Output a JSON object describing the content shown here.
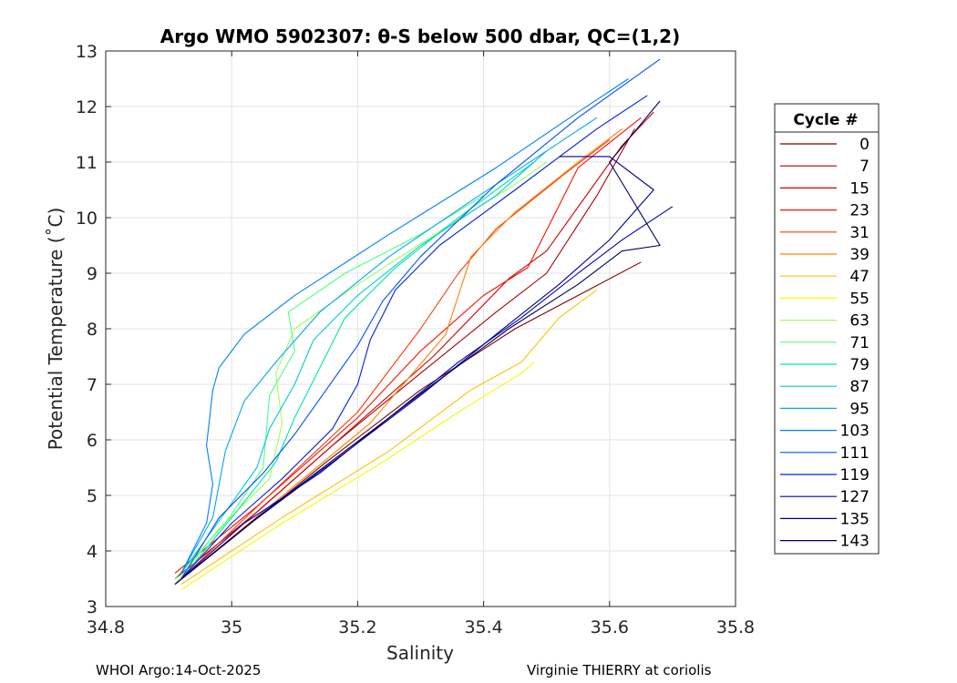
{
  "chart_data": {
    "type": "line",
    "title": "Argo WMO 5902307: θ-S below 500 dbar,  QC=(1,2)",
    "xlabel": "Salinity",
    "ylabel": "Potential Temperature (˚C)",
    "xlim": [
      34.8,
      35.8
    ],
    "ylim": [
      3,
      13
    ],
    "xticks": [
      34.8,
      35.0,
      35.2,
      35.4,
      35.6,
      35.8
    ],
    "xtick_labels": [
      "34.8",
      "35",
      "35.2",
      "35.4",
      "35.6",
      "35.8"
    ],
    "yticks": [
      3,
      4,
      5,
      6,
      7,
      8,
      9,
      10,
      11,
      12,
      13
    ],
    "ytick_labels": [
      "3",
      "4",
      "5",
      "6",
      "7",
      "8",
      "9",
      "10",
      "11",
      "12",
      "13"
    ],
    "grid": true,
    "legend_title": "Cycle #",
    "legend_position": "right",
    "series": [
      {
        "name": "0",
        "color": "#800000",
        "points": [
          [
            34.91,
            3.4
          ],
          [
            35.02,
            4.4
          ],
          [
            35.15,
            5.6
          ],
          [
            35.3,
            6.9
          ],
          [
            35.45,
            8.0
          ],
          [
            35.55,
            8.6
          ],
          [
            35.65,
            9.2
          ]
        ]
      },
      {
        "name": "7",
        "color": "#a80000",
        "points": [
          [
            34.91,
            3.5
          ],
          [
            35.03,
            4.6
          ],
          [
            35.16,
            5.9
          ],
          [
            35.3,
            7.2
          ],
          [
            35.42,
            8.3
          ],
          [
            35.5,
            9.0
          ],
          [
            35.58,
            10.4
          ],
          [
            35.64,
            11.6
          ]
        ]
      },
      {
        "name": "15",
        "color": "#d00000",
        "points": [
          [
            34.91,
            3.5
          ],
          [
            35.04,
            4.7
          ],
          [
            35.18,
            6.1
          ],
          [
            35.32,
            7.5
          ],
          [
            35.44,
            8.9
          ],
          [
            35.5,
            9.4
          ],
          [
            35.62,
            11.3
          ],
          [
            35.67,
            11.9
          ]
        ]
      },
      {
        "name": "23",
        "color": "#f81000",
        "points": [
          [
            34.91,
            3.6
          ],
          [
            35.04,
            4.8
          ],
          [
            35.2,
            6.4
          ],
          [
            35.3,
            7.6
          ],
          [
            35.4,
            8.6
          ],
          [
            35.47,
            9.1
          ],
          [
            35.55,
            10.9
          ],
          [
            35.65,
            11.8
          ]
        ]
      },
      {
        "name": "31",
        "color": "#ff3800",
        "points": [
          [
            34.92,
            3.5
          ],
          [
            35.05,
            4.9
          ],
          [
            35.2,
            6.5
          ],
          [
            35.3,
            8.0
          ],
          [
            35.36,
            9.0
          ],
          [
            35.42,
            9.8
          ],
          [
            35.53,
            10.8
          ],
          [
            35.6,
            11.4
          ]
        ]
      },
      {
        "name": "39",
        "color": "#ff8000",
        "points": [
          [
            34.92,
            3.5
          ],
          [
            35.06,
            4.8
          ],
          [
            35.22,
            6.3
          ],
          [
            35.34,
            7.9
          ],
          [
            35.38,
            9.3
          ],
          [
            35.45,
            10.1
          ],
          [
            35.55,
            11.0
          ],
          [
            35.62,
            11.6
          ]
        ]
      },
      {
        "name": "47",
        "color": "#ffc000",
        "points": [
          [
            34.92,
            3.4
          ],
          [
            35.08,
            4.6
          ],
          [
            35.25,
            5.8
          ],
          [
            35.38,
            6.9
          ],
          [
            35.46,
            7.4
          ],
          [
            35.52,
            8.2
          ],
          [
            35.58,
            8.7
          ]
        ]
      },
      {
        "name": "55",
        "color": "#f8f800",
        "points": [
          [
            34.92,
            3.3
          ],
          [
            35.08,
            4.5
          ],
          [
            35.24,
            5.6
          ],
          [
            35.36,
            6.5
          ],
          [
            35.46,
            7.2
          ],
          [
            35.48,
            7.4
          ]
        ]
      },
      {
        "name": "63",
        "color": "#a0ff58",
        "points": [
          [
            34.91,
            3.4
          ],
          [
            34.98,
            4.4
          ],
          [
            35.06,
            5.3
          ],
          [
            35.08,
            6.3
          ],
          [
            35.07,
            7.2
          ],
          [
            35.1,
            8.0
          ],
          [
            35.2,
            8.8
          ],
          [
            35.35,
            9.9
          ],
          [
            35.45,
            10.6
          ],
          [
            35.5,
            11.0
          ]
        ]
      },
      {
        "name": "71",
        "color": "#50ff80",
        "points": [
          [
            34.91,
            3.5
          ],
          [
            34.99,
            4.5
          ],
          [
            35.05,
            5.5
          ],
          [
            35.06,
            6.8
          ],
          [
            35.1,
            7.6
          ],
          [
            35.09,
            8.3
          ],
          [
            35.18,
            9.0
          ],
          [
            35.3,
            9.7
          ],
          [
            35.4,
            10.4
          ]
        ]
      },
      {
        "name": "79",
        "color": "#00e8a0",
        "points": [
          [
            34.92,
            3.5
          ],
          [
            35.0,
            4.6
          ],
          [
            35.07,
            5.6
          ],
          [
            35.1,
            6.4
          ],
          [
            35.14,
            7.3
          ],
          [
            35.18,
            8.2
          ],
          [
            35.26,
            9.1
          ],
          [
            35.36,
            10.0
          ],
          [
            35.48,
            11.0
          ]
        ]
      },
      {
        "name": "87",
        "color": "#00c8d8",
        "points": [
          [
            34.92,
            3.6
          ],
          [
            34.99,
            4.7
          ],
          [
            35.04,
            5.5
          ],
          [
            35.06,
            6.2
          ],
          [
            35.1,
            7.0
          ],
          [
            35.13,
            7.8
          ],
          [
            35.2,
            8.6
          ],
          [
            35.3,
            9.5
          ],
          [
            35.42,
            10.4
          ],
          [
            35.5,
            11.2
          ]
        ]
      },
      {
        "name": "95",
        "color": "#00a8f8",
        "points": [
          [
            34.92,
            3.6
          ],
          [
            34.97,
            4.6
          ],
          [
            34.99,
            5.8
          ],
          [
            35.02,
            6.7
          ],
          [
            35.07,
            7.4
          ],
          [
            35.14,
            8.3
          ],
          [
            35.25,
            9.3
          ],
          [
            35.38,
            10.3
          ],
          [
            35.5,
            11.2
          ],
          [
            35.58,
            11.8
          ]
        ]
      },
      {
        "name": "103",
        "color": "#0080ff",
        "points": [
          [
            34.92,
            3.6
          ],
          [
            34.96,
            4.5
          ],
          [
            34.97,
            5.2
          ],
          [
            34.96,
            5.9
          ],
          [
            34.97,
            6.9
          ],
          [
            34.98,
            7.3
          ],
          [
            35.02,
            7.9
          ],
          [
            35.1,
            8.6
          ],
          [
            35.25,
            9.7
          ],
          [
            35.42,
            10.9
          ],
          [
            35.55,
            11.9
          ],
          [
            35.63,
            12.5
          ]
        ]
      },
      {
        "name": "111",
        "color": "#0050ff",
        "points": [
          [
            34.92,
            3.5
          ],
          [
            34.98,
            4.6
          ],
          [
            35.05,
            5.4
          ],
          [
            35.1,
            6.1
          ],
          [
            35.15,
            6.9
          ],
          [
            35.2,
            7.7
          ],
          [
            35.24,
            8.5
          ],
          [
            35.3,
            9.3
          ],
          [
            35.42,
            10.6
          ],
          [
            35.55,
            11.8
          ],
          [
            35.68,
            12.85
          ]
        ]
      },
      {
        "name": "119",
        "color": "#0020e8",
        "points": [
          [
            34.92,
            3.5
          ],
          [
            35.0,
            4.5
          ],
          [
            35.08,
            5.3
          ],
          [
            35.16,
            6.2
          ],
          [
            35.2,
            7.0
          ],
          [
            35.22,
            7.8
          ],
          [
            35.26,
            8.7
          ],
          [
            35.33,
            9.5
          ],
          [
            35.45,
            10.5
          ],
          [
            35.58,
            11.6
          ],
          [
            35.66,
            12.2
          ]
        ]
      },
      {
        "name": "127",
        "color": "#0000b8",
        "points": [
          [
            34.92,
            3.5
          ],
          [
            35.02,
            4.5
          ],
          [
            35.14,
            5.4
          ],
          [
            35.25,
            6.4
          ],
          [
            35.36,
            7.4
          ],
          [
            35.46,
            8.2
          ],
          [
            35.55,
            9.0
          ],
          [
            35.62,
            9.6
          ],
          [
            35.7,
            10.2
          ]
        ]
      },
      {
        "name": "135",
        "color": "#000088",
        "points": [
          [
            34.91,
            3.4
          ],
          [
            35.03,
            4.5
          ],
          [
            35.16,
            5.6
          ],
          [
            35.3,
            6.8
          ],
          [
            35.42,
            7.9
          ],
          [
            35.52,
            8.8
          ],
          [
            35.6,
            9.6
          ],
          [
            35.67,
            10.5
          ],
          [
            35.6,
            11.1
          ],
          [
            35.52,
            11.1
          ]
        ]
      },
      {
        "name": "143",
        "color": "#000060",
        "points": [
          [
            34.91,
            3.4
          ],
          [
            35.04,
            4.6
          ],
          [
            35.18,
            5.8
          ],
          [
            35.32,
            7.0
          ],
          [
            35.44,
            8.0
          ],
          [
            35.55,
            8.8
          ],
          [
            35.62,
            9.4
          ],
          [
            35.68,
            9.5
          ],
          [
            35.6,
            11.0
          ],
          [
            35.68,
            12.1
          ]
        ]
      }
    ]
  },
  "footer": {
    "left": "WHOI Argo:14-Oct-2025",
    "right": "Virginie THIERRY at coriolis"
  }
}
